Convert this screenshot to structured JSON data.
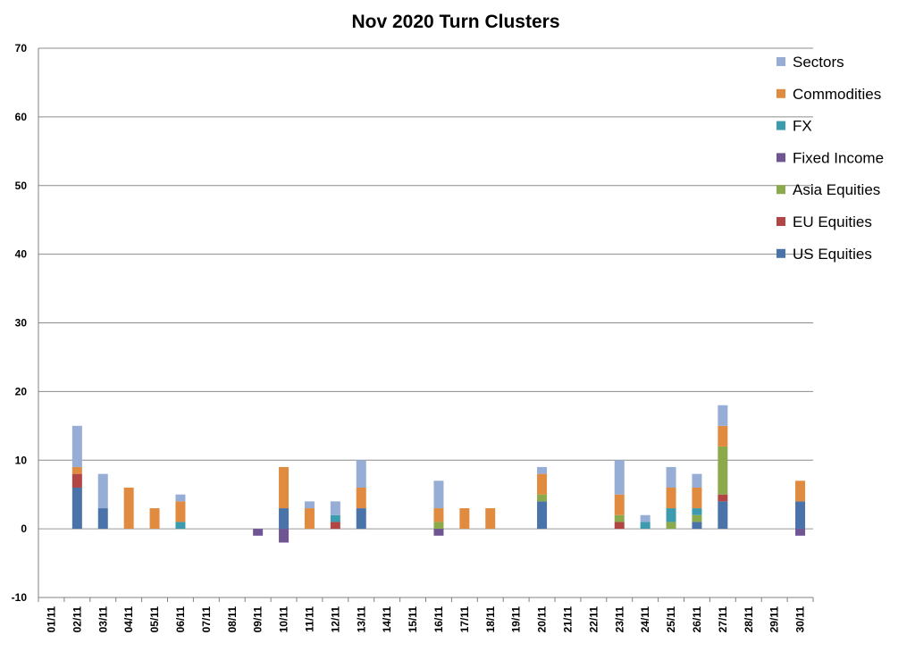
{
  "chart_data": {
    "type": "bar",
    "stacked": true,
    "title": "Nov 2020 Turn Clusters",
    "xlabel": "",
    "ylabel": "",
    "ylim": [
      -10,
      70
    ],
    "yticks": [
      -10,
      0,
      10,
      20,
      30,
      40,
      50,
      60,
      70
    ],
    "grid": true,
    "legend_position": "right",
    "categories": [
      "01/11",
      "02/11",
      "03/11",
      "04/11",
      "05/11",
      "06/11",
      "07/11",
      "08/11",
      "09/11",
      "10/11",
      "11/11",
      "12/11",
      "13/11",
      "14/11",
      "15/11",
      "16/11",
      "17/11",
      "18/11",
      "19/11",
      "20/11",
      "21/11",
      "22/11",
      "23/11",
      "24/11",
      "25/11",
      "26/11",
      "27/11",
      "28/11",
      "29/11",
      "30/11"
    ],
    "series": [
      {
        "name": "US Equities",
        "color": "#4a73aa",
        "values": [
          0,
          6,
          3,
          0,
          0,
          0,
          0,
          0,
          0,
          3,
          0,
          0,
          3,
          0,
          0,
          0,
          0,
          0,
          0,
          4,
          0,
          0,
          0,
          0,
          0,
          1,
          4,
          0,
          0,
          4
        ]
      },
      {
        "name": "EU Equities",
        "color": "#b24644",
        "values": [
          0,
          2,
          0,
          0,
          0,
          0,
          0,
          0,
          0,
          0,
          0,
          1,
          0,
          0,
          0,
          0,
          0,
          0,
          0,
          0,
          0,
          0,
          1,
          0,
          0,
          0,
          1,
          0,
          0,
          0
        ]
      },
      {
        "name": "Asia Equities",
        "color": "#8aaa4b",
        "values": [
          0,
          0,
          0,
          0,
          0,
          0,
          0,
          0,
          0,
          0,
          0,
          0,
          0,
          0,
          0,
          1,
          0,
          0,
          0,
          1,
          0,
          0,
          1,
          0,
          1,
          1,
          7,
          0,
          0,
          0
        ]
      },
      {
        "name": "Fixed Income",
        "color": "#6f5693",
        "values": [
          0,
          0,
          0,
          0,
          0,
          0,
          0,
          0,
          -1,
          -2,
          0,
          0,
          0,
          0,
          0,
          -1,
          0,
          0,
          0,
          0,
          0,
          0,
          0,
          0,
          0,
          0,
          0,
          0,
          0,
          -1
        ]
      },
      {
        "name": "FX",
        "color": "#3d9bb0",
        "values": [
          0,
          0,
          0,
          0,
          0,
          1,
          0,
          0,
          0,
          0,
          0,
          1,
          0,
          0,
          0,
          0,
          0,
          0,
          0,
          0,
          0,
          0,
          0,
          1,
          2,
          1,
          0,
          0,
          0,
          0
        ]
      },
      {
        "name": "Commodities",
        "color": "#e08b3f",
        "values": [
          0,
          1,
          0,
          6,
          3,
          3,
          0,
          0,
          0,
          6,
          3,
          0,
          3,
          0,
          0,
          2,
          3,
          3,
          0,
          3,
          0,
          0,
          3,
          0,
          3,
          3,
          3,
          0,
          0,
          3
        ]
      },
      {
        "name": "Sectors",
        "color": "#96add6",
        "values": [
          0,
          6,
          5,
          0,
          0,
          1,
          0,
          0,
          0,
          0,
          1,
          2,
          4,
          0,
          0,
          4,
          0,
          0,
          0,
          1,
          0,
          0,
          5,
          1,
          3,
          2,
          3,
          0,
          0,
          0
        ]
      }
    ]
  }
}
